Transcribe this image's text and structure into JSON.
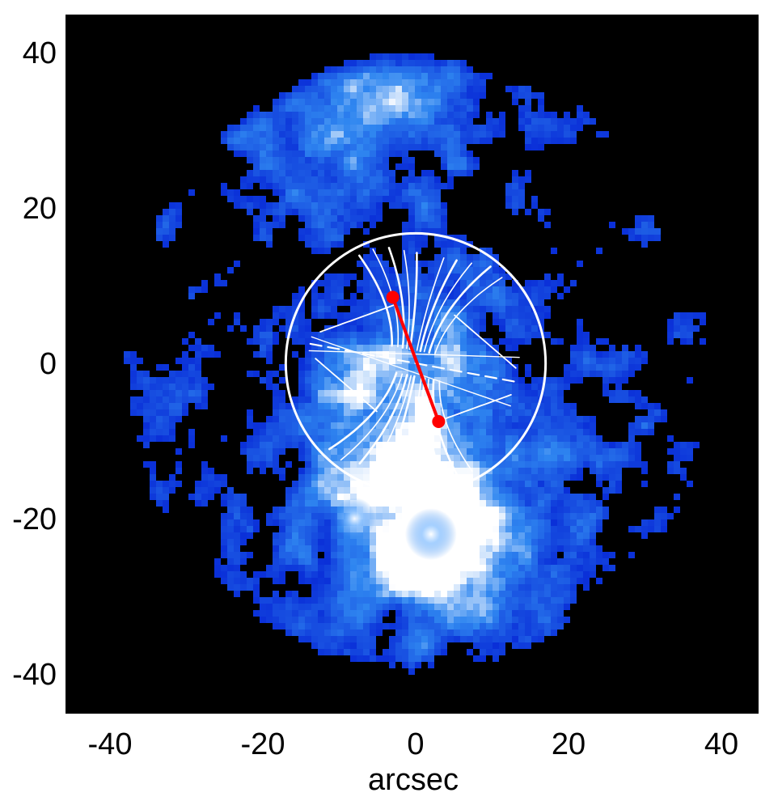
{
  "figure": {
    "x_axis": {
      "label": "arcsec",
      "range": [
        -45,
        45
      ],
      "tick_labels": [
        "-40",
        "-20",
        "0",
        "20",
        "40"
      ],
      "tick_values": [
        -40,
        -20,
        0,
        20,
        40
      ]
    },
    "y_axis": {
      "label": "",
      "range": [
        -45,
        45
      ],
      "tick_labels": [
        "40",
        "20",
        "0",
        "-20",
        "-40"
      ],
      "tick_values": [
        40,
        20,
        0,
        -20,
        -40
      ]
    },
    "colormap": {
      "background": "#000000",
      "low": "#0a2fd8",
      "mid": "#2f86f0",
      "high": "#ffffff"
    },
    "overlay": {
      "circle_radius_arcsec": 17,
      "circle_color": "#ffffff",
      "field_line_color": "#ffffff",
      "orientation_segment": {
        "color": "#ff0000",
        "start": [
          -3,
          8.5
        ],
        "end": [
          3,
          -7.5
        ]
      }
    }
  }
}
